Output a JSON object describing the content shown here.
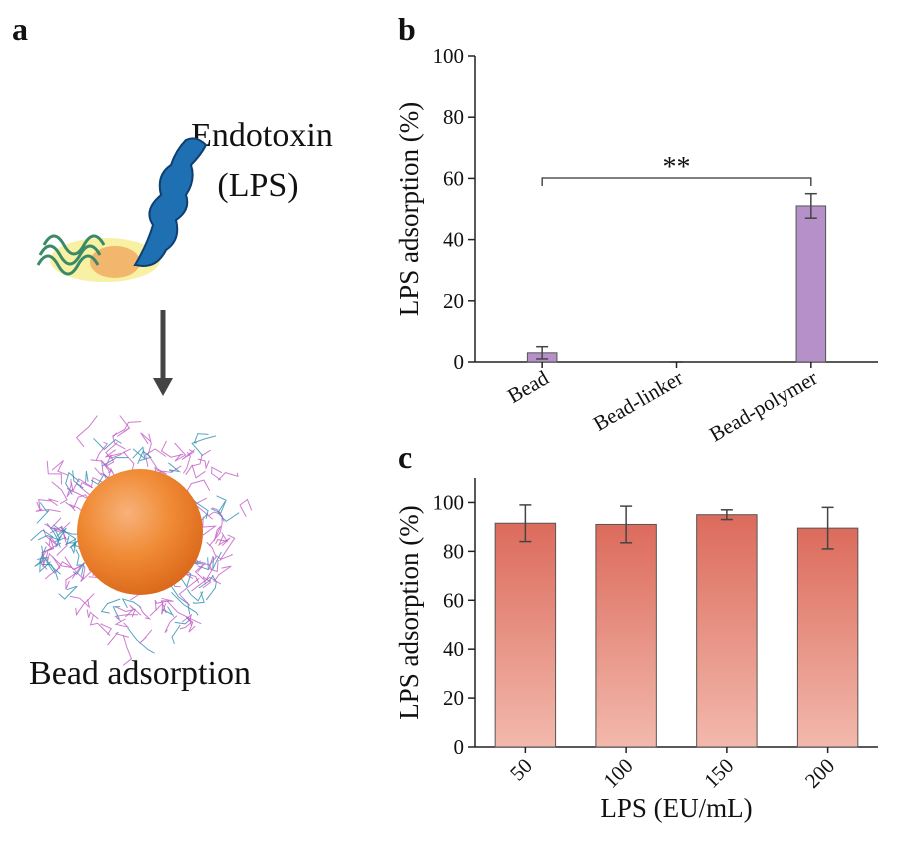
{
  "figure": {
    "panel_labels": [
      "a",
      "b",
      "c"
    ],
    "diagram": {
      "molecule_label": [
        "Endotoxin",
        "(LPS)"
      ],
      "result_label": "Bead adsorption"
    }
  },
  "chart_data": [
    {
      "type": "bar",
      "ylabel": "LPS adsorption (%)",
      "categories": [
        "Bead",
        "Bead-linker",
        "Bead-polymer"
      ],
      "series": [
        {
          "color": "#b690c9",
          "values": [
            3,
            0,
            51
          ],
          "errors": [
            2,
            0,
            4
          ]
        }
      ],
      "ylim": [
        0,
        100
      ],
      "yticks": [
        0,
        20,
        40,
        60,
        80,
        100
      ],
      "annotations": [
        {
          "text": "**"
        }
      ]
    },
    {
      "type": "bar",
      "ylabel": "LPS adsorption (%)",
      "xlabel": "LPS (EU/mL)",
      "categories": [
        "50",
        "100",
        "150",
        "200"
      ],
      "series": [
        {
          "color": "#dc6b5c",
          "gradient_end": "#f2b9ac",
          "values": [
            91.5,
            91,
            95,
            89.5
          ],
          "errors": [
            7.5,
            7.5,
            2,
            8.5
          ]
        }
      ],
      "ylim": [
        0,
        110
      ],
      "yticks": [
        0,
        20,
        40,
        60,
        80,
        100
      ]
    }
  ]
}
